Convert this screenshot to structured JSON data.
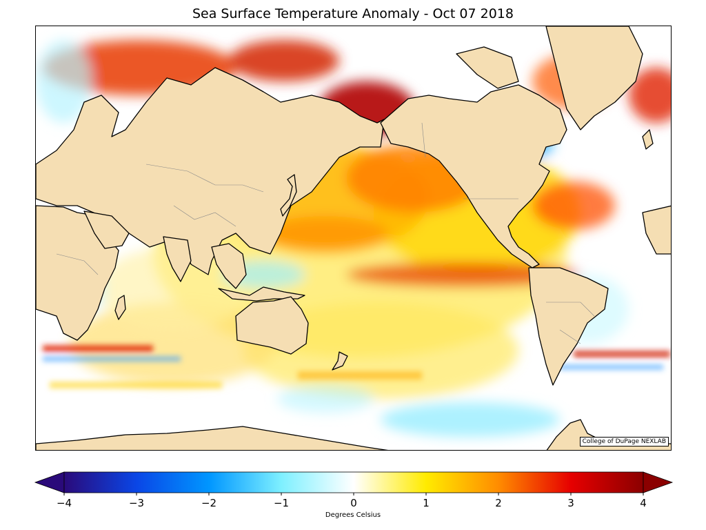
{
  "title": "Sea Surface Temperature Anomaly - Oct 07 2018",
  "credit": "College of DuPage NEXLAB",
  "colorbar": {
    "label": "Degrees Celsius",
    "range": [
      -4,
      4
    ],
    "ticks": [
      {
        "value": -4,
        "text": "−4"
      },
      {
        "value": -3,
        "text": "−3"
      },
      {
        "value": -2,
        "text": "−2"
      },
      {
        "value": -1,
        "text": "−1"
      },
      {
        "value": 0,
        "text": "0"
      },
      {
        "value": 1,
        "text": "1"
      },
      {
        "value": 2,
        "text": "2"
      },
      {
        "value": 3,
        "text": "3"
      },
      {
        "value": 4,
        "text": "4"
      }
    ],
    "stops": [
      {
        "value": -4,
        "color": "#2a0a7a"
      },
      {
        "value": -3,
        "color": "#0a46e6"
      },
      {
        "value": -2,
        "color": "#0096ff"
      },
      {
        "value": -1,
        "color": "#7ef0ff"
      },
      {
        "value": 0,
        "color": "#ffffff"
      },
      {
        "value": 1,
        "color": "#ffeb00"
      },
      {
        "value": 2,
        "color": "#ff8c00"
      },
      {
        "value": 3,
        "color": "#e60000"
      },
      {
        "value": 4,
        "color": "#8b0000"
      }
    ]
  },
  "colors": {
    "land": "#f5deb3",
    "coast": "#000000",
    "ocean_neutral": "#ffffff"
  }
}
